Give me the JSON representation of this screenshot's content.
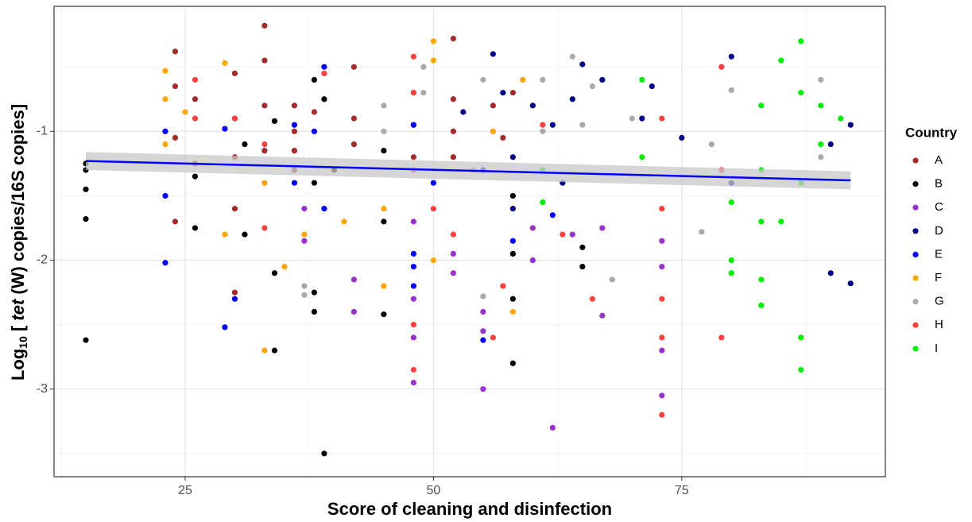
{
  "chart_data": {
    "type": "scatter",
    "xlabel": "Score of cleaning and disinfection",
    "ylabel": [
      {
        "text": "Log"
      },
      {
        "text": "10",
        "style": "sub"
      },
      {
        "text": " [ "
      },
      {
        "text": "tet",
        "style": "italic"
      },
      {
        "text": " (W) copies/16S copies]"
      }
    ],
    "legend_title": "Country",
    "legend": "right",
    "grid": true,
    "minor_grid": true,
    "xlim": [
      11.8,
      95.5
    ],
    "ylim": [
      -3.68,
      -0.03
    ],
    "xticks": [
      25,
      50,
      75
    ],
    "yticks": [
      -1,
      -2,
      -3
    ],
    "trend": {
      "color": "#0000ff",
      "band_color": "#c8c8c8",
      "x": [
        15,
        92
      ],
      "y": [
        -1.23,
        -1.38
      ],
      "lower": [
        -1.3,
        -1.45
      ],
      "upper": [
        -1.16,
        -1.31
      ]
    },
    "series": [
      {
        "name": "A",
        "color": "#a52a2a",
        "x": [
          24,
          24,
          24,
          24,
          26,
          26,
          30,
          30,
          30,
          30,
          30,
          33,
          33,
          33,
          33,
          36,
          36,
          36,
          36,
          38,
          42,
          42,
          42,
          48,
          48,
          48,
          52,
          52,
          52,
          52,
          56,
          57,
          58
        ],
        "values": [
          -0.38,
          -0.65,
          -1.05,
          -1.7,
          -0.75,
          -1.25,
          -0.55,
          -0.9,
          -1.2,
          -1.6,
          -2.25,
          -0.18,
          -0.45,
          -0.8,
          -1.15,
          -0.8,
          -1.0,
          -1.15,
          -1.3,
          -0.85,
          -0.5,
          -0.9,
          -1.1,
          -0.7,
          -0.95,
          -1.2,
          -0.28,
          -0.75,
          -1.0,
          -1.2,
          -0.8,
          -1.05,
          -0.7
        ]
      },
      {
        "name": "B",
        "color": "#000000",
        "x": [
          15,
          15,
          15,
          15,
          15,
          26,
          26,
          31,
          31,
          34,
          34,
          34,
          38,
          38,
          38,
          38,
          39,
          39,
          40,
          45,
          45,
          45,
          58,
          58,
          58,
          58,
          65,
          65
        ],
        "values": [
          -1.25,
          -1.3,
          -1.45,
          -1.68,
          -2.62,
          -1.35,
          -1.75,
          -1.1,
          -1.8,
          -0.92,
          -2.1,
          -2.7,
          -0.6,
          -1.4,
          -2.25,
          -2.4,
          -0.75,
          -3.5,
          -1.3,
          -1.15,
          -1.7,
          -2.42,
          -1.95,
          -2.3,
          -2.8,
          -1.5,
          -1.9,
          -2.05
        ]
      },
      {
        "name": "C",
        "color": "#9932cc",
        "x": [
          37,
          37,
          42,
          42,
          48,
          48,
          48,
          48,
          52,
          52,
          55,
          55,
          55,
          60,
          60,
          62,
          64,
          67,
          67,
          73,
          73,
          73,
          73
        ],
        "values": [
          -1.6,
          -1.85,
          -2.15,
          -2.4,
          -1.7,
          -2.3,
          -2.6,
          -2.95,
          -1.95,
          -2.1,
          -2.4,
          -2.55,
          -3.0,
          -1.75,
          -2.0,
          -3.3,
          -1.8,
          -1.75,
          -2.43,
          -1.85,
          -2.05,
          -2.7,
          -3.05
        ]
      },
      {
        "name": "D",
        "color": "#00008b",
        "x": [
          53,
          55,
          56,
          57,
          58,
          58,
          60,
          62,
          63,
          64,
          65,
          67,
          71,
          72,
          75,
          80,
          80,
          90,
          90,
          92,
          92
        ],
        "values": [
          -0.85,
          -1.3,
          -0.4,
          -0.7,
          -1.2,
          -1.6,
          -0.8,
          -0.95,
          -1.4,
          -0.75,
          -0.48,
          -0.6,
          -0.9,
          -0.65,
          -1.05,
          -0.42,
          -1.4,
          -1.1,
          -2.1,
          -0.95,
          -2.18
        ]
      },
      {
        "name": "E",
        "color": "#0000ff",
        "x": [
          23,
          23,
          23,
          29,
          29,
          30,
          36,
          36,
          38,
          39,
          39,
          48,
          48,
          48,
          48,
          50,
          55,
          58,
          62
        ],
        "values": [
          -1.0,
          -1.5,
          -2.02,
          -0.98,
          -2.52,
          -2.3,
          -0.95,
          -1.4,
          -1.0,
          -0.5,
          -1.6,
          -2.05,
          -1.95,
          -2.2,
          -0.95,
          -1.4,
          -2.62,
          -1.85,
          -1.65
        ]
      },
      {
        "name": "F",
        "color": "#ffa500",
        "x": [
          23,
          23,
          23,
          25,
          29,
          29,
          33,
          33,
          35,
          37,
          41,
          45,
          45,
          50,
          50,
          50,
          56,
          58,
          59
        ],
        "values": [
          -0.53,
          -0.75,
          -1.1,
          -0.85,
          -0.47,
          -1.8,
          -1.4,
          -2.7,
          -2.05,
          -1.8,
          -1.7,
          -1.6,
          -2.2,
          -0.3,
          -0.45,
          -2.0,
          -1.0,
          -2.4,
          -0.6
        ]
      },
      {
        "name": "G",
        "color": "#a9a9a9",
        "x": [
          37,
          37,
          45,
          45,
          49,
          49,
          54,
          55,
          55,
          61,
          61,
          64,
          65,
          66,
          68,
          70,
          77,
          78,
          80,
          89,
          89
        ],
        "values": [
          -2.2,
          -2.27,
          -0.8,
          -1.0,
          -0.5,
          -0.7,
          -1.3,
          -0.6,
          -2.28,
          -0.6,
          -1.0,
          -0.42,
          -0.95,
          -0.65,
          -2.15,
          -0.9,
          -1.78,
          -1.1,
          -0.68,
          -0.6,
          -1.2
        ]
      },
      {
        "name": "H",
        "color": "#ff4040",
        "x": [
          26,
          26,
          30,
          33,
          33,
          39,
          48,
          48,
          48,
          48,
          48,
          50,
          52,
          56,
          57,
          61,
          63,
          66,
          73,
          73,
          73,
          73,
          73,
          79,
          79,
          79
        ],
        "values": [
          -0.6,
          -0.9,
          -0.9,
          -1.1,
          -1.75,
          -0.55,
          -0.42,
          -0.7,
          -1.3,
          -2.5,
          -2.85,
          -1.6,
          -1.8,
          -2.6,
          -2.2,
          -0.95,
          -1.8,
          -2.3,
          -0.9,
          -1.6,
          -2.3,
          -2.6,
          -3.2,
          -0.5,
          -1.3,
          -2.6
        ]
      },
      {
        "name": "I",
        "color": "#00ee00",
        "x": [
          61,
          61,
          71,
          71,
          80,
          80,
          80,
          83,
          83,
          83,
          83,
          83,
          85,
          85,
          87,
          87,
          87,
          87,
          87,
          89,
          89,
          91
        ],
        "values": [
          -1.3,
          -1.55,
          -0.6,
          -1.2,
          -1.55,
          -2.0,
          -2.1,
          -0.8,
          -1.3,
          -1.7,
          -2.15,
          -2.35,
          -0.45,
          -1.7,
          -0.3,
          -0.7,
          -1.4,
          -2.6,
          -2.85,
          -0.8,
          -1.1,
          -0.9
        ]
      }
    ]
  }
}
